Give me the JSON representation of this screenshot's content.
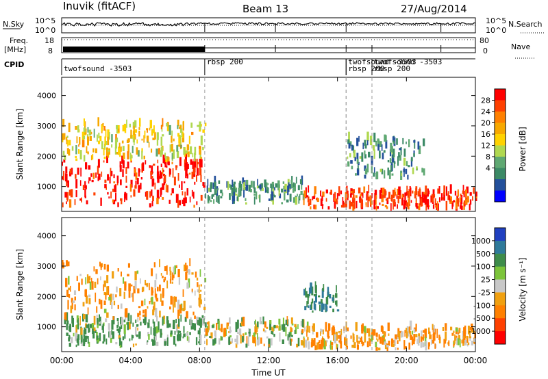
{
  "header": {
    "station": "Inuvik (fitACF)",
    "beam": "Beam 13",
    "date": "27/Aug/2014"
  },
  "top_panels": {
    "nsky_label": "N.Sky",
    "nsky_ticks": [
      "10^5",
      "10^0"
    ],
    "nsearch_label": "N.Search",
    "nsearch_ticks": [
      "10^5",
      "10^0"
    ],
    "freq_label": "Freq.",
    "freq_unit": "[MHz]",
    "freq_ticks": [
      "18",
      "8"
    ],
    "nave_label": "Nave",
    "nave_ticks": [
      "80",
      "0"
    ],
    "cpid_label": "CPID",
    "cpid_entries": [
      {
        "name": "twofsound -3503",
        "time_h": 0.0
      },
      {
        "name": "rbsp 200",
        "time_h": 8.3
      },
      {
        "name": "rbsp 200",
        "time_h": 16.5
      },
      {
        "name": "twofsound -3503",
        "time_h": 16.5
      },
      {
        "name": "rbsp 200",
        "time_h": 18.0
      },
      {
        "name": "twofsound -3503",
        "time_h": 18.0
      }
    ]
  },
  "x_axis": {
    "label": "Time UT",
    "ticks": [
      "00:00",
      "04:00",
      "08:00",
      "12:00",
      "16:00",
      "20:00",
      "00:00"
    ],
    "range_h": [
      0,
      24
    ]
  },
  "colorbars": {
    "power": {
      "label": "Power [dB]",
      "ticks": [
        "28",
        "24",
        "20",
        "16",
        "12",
        "8",
        "4"
      ],
      "colors": [
        "#ff0000",
        "#ff4000",
        "#ff8000",
        "#f7a800",
        "#ffd200",
        "#b0d850",
        "#5fa872",
        "#3c8a66",
        "#23509b",
        "#0000ff"
      ]
    },
    "velocity": {
      "label": "Velocity [m s⁻¹]",
      "ticks": [
        "1000",
        "500",
        "100",
        "25",
        "-25",
        "-100",
        "-500",
        "-1000"
      ],
      "colors": [
        "#2040c0",
        "#2f7a9a",
        "#3e8c4a",
        "#7cc43a",
        "#c8c8c8",
        "#f0a010",
        "#ff8000",
        "#ff4000",
        "#ff0000"
      ]
    }
  },
  "chart_data": [
    {
      "type": "heatmap",
      "panel": "power",
      "ylabel": "Slant Range [km]",
      "yticks": [
        "1000",
        "2000",
        "3000",
        "4000"
      ],
      "ylim": [
        180,
        4600
      ],
      "xlim": [
        0,
        24
      ],
      "colorbar": "Power [dB]",
      "regions": [
        {
          "t0": 0.0,
          "t1": 8.3,
          "r0": 300,
          "r1": 1800,
          "value_db": 28
        },
        {
          "t0": 0.0,
          "t1": 8.3,
          "r0": 1800,
          "r1": 3000,
          "value_db": 16
        },
        {
          "t0": 8.3,
          "t1": 14.0,
          "r0": 400,
          "r1": 1100,
          "value_db": 8
        },
        {
          "t0": 14.0,
          "t1": 24.0,
          "r0": 200,
          "r1": 800,
          "value_db": 26
        },
        {
          "t0": 16.5,
          "t1": 21.0,
          "r0": 1200,
          "r1": 2500,
          "value_db": 8
        }
      ]
    },
    {
      "type": "heatmap",
      "panel": "velocity",
      "ylabel": "Slant Range [km]",
      "yticks": [
        "1000",
        "2000",
        "3000",
        "4000"
      ],
      "ylim": [
        180,
        4600
      ],
      "xlim": [
        0,
        24
      ],
      "colorbar": "Velocity [m s⁻¹]",
      "regions": [
        {
          "t0": 0.0,
          "t1": 8.3,
          "r0": 300,
          "r1": 1200,
          "value_ms": 100
        },
        {
          "t0": 0.0,
          "t1": 8.3,
          "r0": 1200,
          "r1": 3000,
          "value_ms": -100
        },
        {
          "t0": 8.3,
          "t1": 14.0,
          "r0": 300,
          "r1": 1100,
          "value_ms": 0
        },
        {
          "t0": 14.0,
          "t1": 24.0,
          "r0": 200,
          "r1": 900,
          "value_ms": -100
        },
        {
          "t0": 14.0,
          "t1": 16.0,
          "r0": 1400,
          "r1": 2200,
          "value_ms": 300
        }
      ]
    }
  ]
}
